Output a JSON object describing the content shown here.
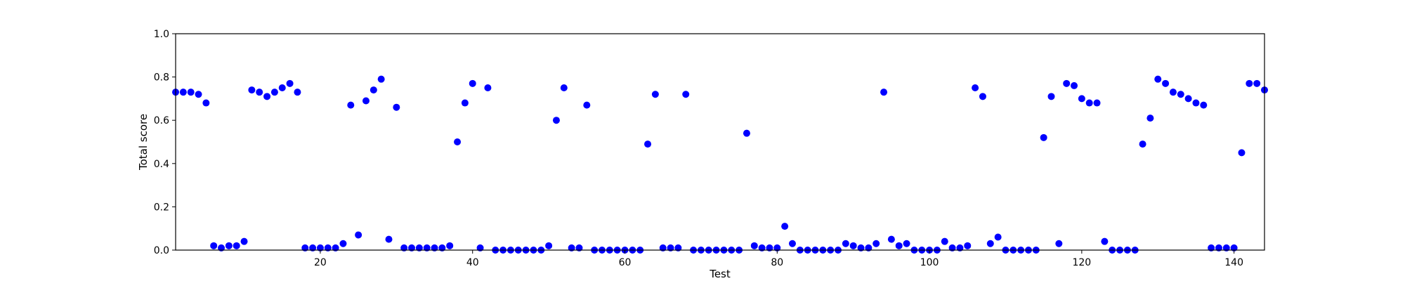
{
  "chart_data": {
    "type": "scatter",
    "title": "",
    "xlabel": "Test",
    "ylabel": "Total score",
    "xlim": [
      1,
      144
    ],
    "ylim": [
      0.0,
      1.0
    ],
    "x_ticks": [
      20,
      40,
      60,
      80,
      100,
      120,
      140
    ],
    "x_tick_labels": [
      "20",
      "40",
      "60",
      "80",
      "100",
      "120",
      "140"
    ],
    "y_ticks": [
      0.0,
      0.2,
      0.4,
      0.6,
      0.8,
      1.0
    ],
    "y_tick_labels": [
      "0.0",
      "0.2",
      "0.4",
      "0.6",
      "0.8",
      "1.0"
    ],
    "grid": false,
    "legend": "none",
    "series": [
      {
        "color": "#0000ff",
        "marker": "circle",
        "x": [
          1,
          2,
          3,
          4,
          5,
          6,
          7,
          8,
          9,
          10,
          11,
          12,
          13,
          14,
          15,
          16,
          17,
          18,
          19,
          20,
          21,
          22,
          23,
          24,
          25,
          26,
          27,
          28,
          29,
          30,
          31,
          32,
          33,
          34,
          35,
          36,
          37,
          38,
          39,
          40,
          41,
          42,
          43,
          44,
          45,
          46,
          47,
          48,
          49,
          50,
          51,
          52,
          53,
          54,
          55,
          56,
          57,
          58,
          59,
          60,
          61,
          62,
          63,
          64,
          65,
          66,
          67,
          68,
          69,
          70,
          71,
          72,
          73,
          74,
          75,
          76,
          77,
          78,
          79,
          80,
          81,
          82,
          83,
          84,
          85,
          86,
          87,
          88,
          89,
          90,
          91,
          92,
          93,
          94,
          95,
          96,
          97,
          98,
          99,
          100,
          101,
          102,
          103,
          104,
          105,
          106,
          107,
          108,
          109,
          110,
          111,
          112,
          113,
          114,
          115,
          116,
          117,
          118,
          119,
          120,
          121,
          122,
          123,
          124,
          125,
          126,
          127,
          128,
          129,
          130,
          131,
          132,
          133,
          134,
          135,
          136,
          137,
          138,
          139,
          140,
          141,
          142,
          143,
          144
        ],
        "y": [
          0.73,
          0.73,
          0.73,
          0.72,
          0.68,
          0.02,
          0.01,
          0.02,
          0.02,
          0.04,
          0.74,
          0.73,
          0.71,
          0.73,
          0.75,
          0.77,
          0.73,
          0.01,
          0.01,
          0.01,
          0.01,
          0.01,
          0.03,
          0.67,
          0.07,
          0.69,
          0.74,
          0.79,
          0.05,
          0.66,
          0.01,
          0.01,
          0.01,
          0.01,
          0.01,
          0.01,
          0.02,
          0.5,
          0.68,
          0.77,
          0.01,
          0.75,
          0.0,
          0.0,
          0.0,
          0.0,
          0.0,
          0.0,
          0.0,
          0.02,
          0.6,
          0.75,
          0.01,
          0.01,
          0.67,
          0.0,
          0.0,
          0.0,
          0.0,
          0.0,
          0.0,
          0.0,
          0.49,
          0.72,
          0.01,
          0.01,
          0.01,
          0.72,
          0.0,
          0.0,
          0.0,
          0.0,
          0.0,
          0.0,
          0.0,
          0.54,
          0.02,
          0.01,
          0.01,
          0.01,
          0.11,
          0.03,
          0.0,
          0.0,
          0.0,
          0.0,
          0.0,
          0.0,
          0.03,
          0.02,
          0.01,
          0.01,
          0.03,
          0.73,
          0.05,
          0.02,
          0.03,
          0.0,
          0.0,
          0.0,
          0.0,
          0.04,
          0.01,
          0.01,
          0.02,
          0.75,
          0.71,
          0.03,
          0.06,
          0.0,
          0.0,
          0.0,
          0.0,
          0.0,
          0.52,
          0.71,
          0.03,
          0.77,
          0.76,
          0.7,
          0.68,
          0.68,
          0.04,
          0.0,
          0.0,
          0.0,
          0.0,
          0.49,
          0.61,
          0.79,
          0.77,
          0.73,
          0.72,
          0.7,
          0.68,
          0.67,
          0.01,
          0.01,
          0.01,
          0.01,
          0.45,
          0.77,
          0.77,
          0.74
        ]
      }
    ]
  }
}
